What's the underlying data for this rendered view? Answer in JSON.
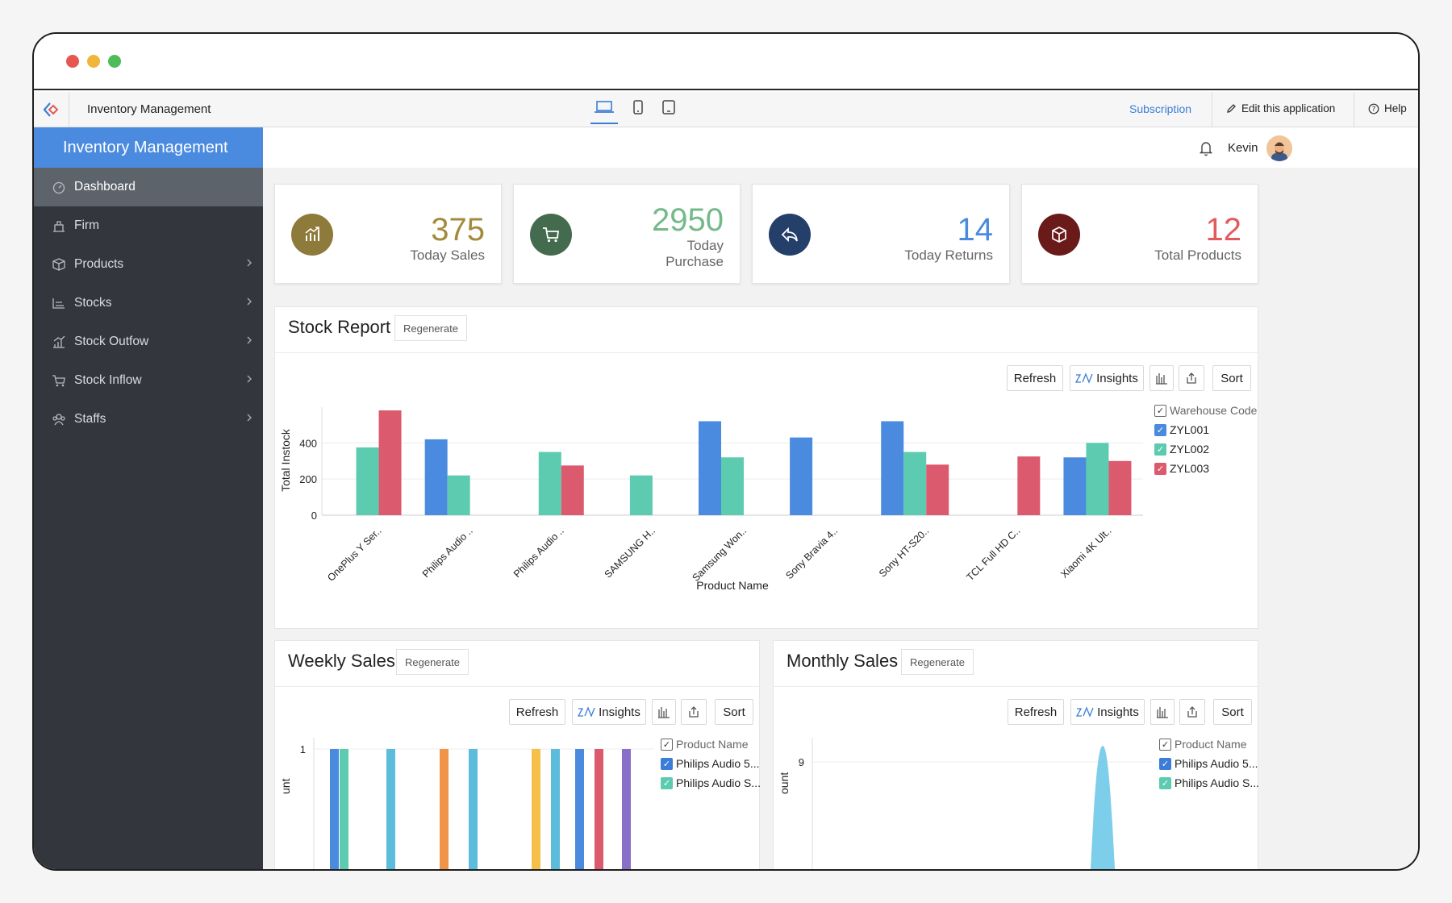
{
  "app": {
    "name": "Inventory Management"
  },
  "appbar": {
    "subscription": "Subscription",
    "edit": "Edit this application",
    "help": "Help"
  },
  "sidebar": {
    "brand": "Inventory Management",
    "items": [
      {
        "label": "Dashboard",
        "icon": "dashboard-icon"
      },
      {
        "label": "Firm",
        "icon": "firm-icon"
      },
      {
        "label": "Products",
        "icon": "box-icon"
      },
      {
        "label": "Stocks",
        "icon": "stocks-icon"
      },
      {
        "label": "Stock Outfow",
        "icon": "outflow-icon"
      },
      {
        "label": "Stock Inflow",
        "icon": "cart-icon"
      },
      {
        "label": "Staffs",
        "icon": "staffs-icon"
      }
    ]
  },
  "user": {
    "name": "Kevin"
  },
  "cards": [
    {
      "value": "375",
      "label": "Today Sales",
      "color": "#a38a3c",
      "bg": "#8e7a3a"
    },
    {
      "value": "2950",
      "label": "Today Purchase",
      "color": "#74b98a",
      "bg": "#456b4f"
    },
    {
      "value": "14",
      "label": "Today Returns",
      "color": "#4a8be0",
      "bg": "#243f6a"
    },
    {
      "value": "12",
      "label": "Total Products",
      "color": "#e25a5a",
      "bg": "#6b1a1a"
    }
  ],
  "toolbar": {
    "refresh": "Refresh",
    "insights": "Insights",
    "sort": "Sort",
    "regenerate": "Regenerate"
  },
  "stock_report": {
    "title": "Stock Report",
    "legend_title": "Warehouse Code",
    "legend": [
      "ZYL001",
      "ZYL002",
      "ZYL003"
    ]
  },
  "weekly": {
    "title": "Weekly Sales",
    "legend_title": "Product Name",
    "legend": [
      "Philips Audio 5...",
      "Philips Audio S..."
    ],
    "y_tick": "1",
    "y_label_fragment": "unt"
  },
  "monthly": {
    "title": "Monthly Sales",
    "legend_title": "Product Name",
    "legend": [
      "Philips Audio 5...",
      "Philips Audio S..."
    ],
    "y_tick": "9",
    "y_label_fragment": "ount"
  },
  "chart_data": [
    {
      "type": "bar",
      "title": "Stock Report",
      "xlabel": "Product Name",
      "ylabel": "Total Instock",
      "ylim": [
        0,
        600
      ],
      "yticks": [
        "0",
        "200",
        "400"
      ],
      "categories": [
        "OnePlus Y Ser..",
        "Philips Audio ..",
        "Philips Audio ..",
        "SAMSUNG H..",
        "Samsung Won..",
        "Sony Bravia 4..",
        "Sony HT-S20..",
        "TCL Full HD C..",
        "Xiaomi 4K Ult.."
      ],
      "series": [
        {
          "name": "ZYL001",
          "color": "#4a8be0",
          "values": [
            null,
            420,
            null,
            null,
            520,
            430,
            520,
            null,
            320
          ]
        },
        {
          "name": "ZYL002",
          "color": "#5ccbb0",
          "values": [
            375,
            220,
            350,
            220,
            320,
            null,
            350,
            null,
            400
          ]
        },
        {
          "name": "ZYL003",
          "color": "#dc5a6e",
          "values": [
            580,
            null,
            275,
            null,
            null,
            null,
            280,
            325,
            300
          ]
        }
      ],
      "legend": "right",
      "grid": true
    },
    {
      "type": "bar",
      "title": "Weekly Sales",
      "ylim": [
        0,
        1
      ],
      "note": "chart cropped at bottom of viewport",
      "bars": [
        {
          "color": "#4a8be0",
          "value": 1
        },
        {
          "color": "#5ccbb0",
          "value": 1
        },
        {
          "color": "#5bbcdc",
          "value": 1
        },
        {
          "color": "#f0944a",
          "value": 1
        },
        {
          "color": "#5bbcdc",
          "value": 1
        },
        {
          "color": "#f5c04a",
          "value": 1
        },
        {
          "color": "#5bbcdc",
          "value": 1
        },
        {
          "color": "#4a8be0",
          "value": 1
        },
        {
          "color": "#dc5a6e",
          "value": 1
        },
        {
          "color": "#8a6fc8",
          "value": 1
        }
      ],
      "legend": "right"
    },
    {
      "type": "area",
      "title": "Monthly Sales",
      "ylim": [
        0,
        10
      ],
      "note": "chart cropped at bottom of viewport",
      "peak": 9,
      "legend": "right"
    }
  ]
}
